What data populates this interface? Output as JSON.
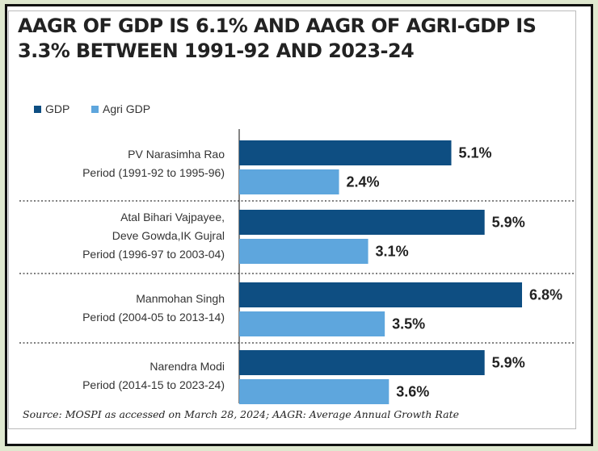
{
  "title": "AAGR OF GDP IS 6.1% AND AAGR OF AGRI-GDP IS 3.3% BETWEEN 1991-92 AND 2023-24",
  "source": "Source: MOSPI as accessed on March 28, 2024; AAGR: Average Annual Growth Rate",
  "colors": {
    "gdp": "#0e4e82",
    "agri": "#5ea6dd"
  },
  "chart_data": {
    "type": "bar",
    "orientation": "horizontal",
    "legend_position": "top-left",
    "grid": false,
    "categories": [
      [
        "PV Narasimha Rao",
        "Period (1991-92 to 1995-96)"
      ],
      [
        "Atal Bihari Vajpayee,",
        "Deve Gowda,IK Gujral",
        "Period (1996-97 to 2003-04)"
      ],
      [
        "Manmohan Singh",
        "Period (2004-05 to 2013-14)"
      ],
      [
        "Narendra Modi",
        "Period (2014-15 to 2023-24)"
      ]
    ],
    "series": [
      {
        "name": "GDP",
        "values": [
          5.1,
          5.9,
          6.8,
          5.9
        ],
        "labels": [
          "5.1%",
          "5.9%",
          "6.8%",
          "5.9%"
        ]
      },
      {
        "name": "Agri GDP",
        "values": [
          2.4,
          3.1,
          3.5,
          3.6
        ],
        "labels": [
          "2.4%",
          "3.1%",
          "3.5%",
          "3.6%"
        ]
      }
    ],
    "xlim": [
      0,
      6.8
    ]
  }
}
